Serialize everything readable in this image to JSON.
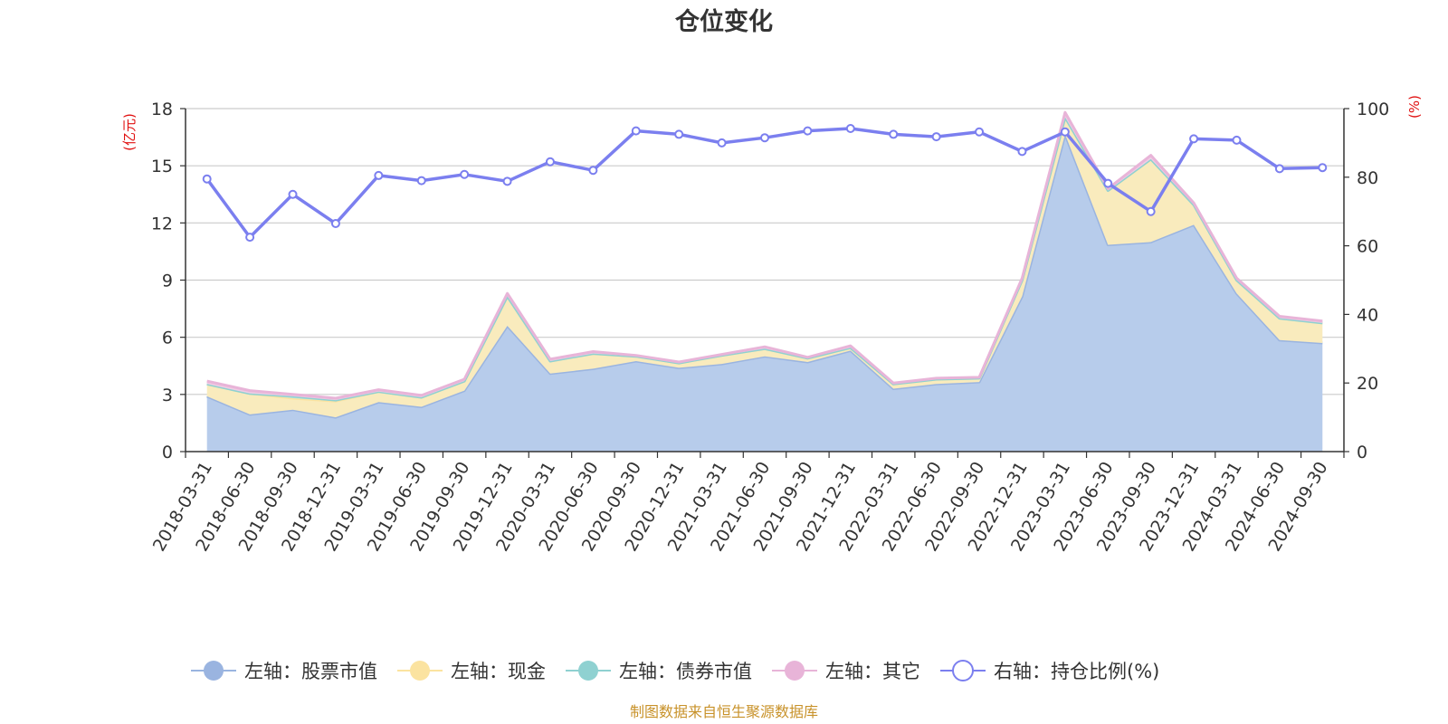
{
  "chart_data": {
    "type": "area",
    "title": "仓位变化",
    "left_axis_unit": "(亿元)",
    "right_axis_unit": "(%)",
    "source_note": "制图数据来自恒生聚源数据库",
    "categories": [
      "2018-03-31",
      "2018-06-30",
      "2018-09-30",
      "2018-12-31",
      "2019-03-31",
      "2019-06-30",
      "2019-09-30",
      "2019-12-31",
      "2020-03-31",
      "2020-06-30",
      "2020-09-30",
      "2020-12-31",
      "2021-03-31",
      "2021-06-30",
      "2021-09-30",
      "2021-12-31",
      "2022-03-31",
      "2022-06-30",
      "2022-09-30",
      "2022-12-31",
      "2023-03-31",
      "2023-06-30",
      "2023-09-30",
      "2023-12-31",
      "2024-03-31",
      "2024-06-30",
      "2024-09-30"
    ],
    "left_axis": {
      "min": 0,
      "max": 18,
      "ticks": [
        0,
        3,
        6,
        9,
        12,
        15,
        18
      ]
    },
    "right_axis": {
      "min": 0,
      "max": 100,
      "ticks": [
        0,
        20,
        40,
        60,
        80,
        100
      ]
    },
    "grid": true,
    "legend_position": "bottom",
    "series": [
      {
        "name": "左轴：股票市值",
        "axis": "left",
        "type": "stacked-area",
        "color": "#9ab4e0",
        "fill": "#b7cceb",
        "values": [
          2.9,
          1.95,
          2.2,
          1.8,
          2.6,
          2.35,
          3.2,
          6.6,
          4.1,
          4.35,
          4.75,
          4.4,
          4.6,
          5.0,
          4.7,
          5.3,
          3.3,
          3.55,
          3.65,
          8.15,
          16.65,
          10.85,
          11.0,
          11.9,
          8.3,
          5.85,
          5.7
        ]
      },
      {
        "name": "左轴：现金",
        "axis": "left",
        "type": "stacked-area",
        "color": "#fbe3a0",
        "fill": "#f9ebbd",
        "values": [
          0.65,
          1.1,
          0.6,
          0.85,
          0.55,
          0.5,
          0.5,
          1.55,
          0.65,
          0.8,
          0.25,
          0.25,
          0.45,
          0.4,
          0.2,
          0.15,
          0.25,
          0.25,
          0.2,
          0.85,
          0.9,
          2.85,
          4.35,
          1.05,
          0.7,
          1.15,
          1.05
        ]
      },
      {
        "name": "左轴：债券市值",
        "axis": "left",
        "type": "stacked-area",
        "color": "#8fd1d1",
        "fill": "#bfe6e6",
        "values": [
          0,
          0,
          0.1,
          0.05,
          0,
          0,
          0,
          0,
          0,
          0,
          0,
          0,
          0,
          0,
          0,
          0,
          0,
          0,
          0,
          0,
          0,
          0,
          0,
          0,
          0,
          0,
          0
        ]
      },
      {
        "name": "左轴：其它",
        "axis": "left",
        "type": "stacked-area",
        "color": "#e8b4d8",
        "fill": "#f0cde4",
        "values": [
          0.15,
          0.15,
          0.1,
          0.1,
          0.1,
          0.1,
          0.1,
          0.15,
          0.1,
          0.1,
          0.05,
          0.05,
          0.05,
          0.1,
          0.05,
          0.1,
          0.05,
          0.05,
          0.05,
          0.1,
          0.25,
          0.1,
          0.2,
          0.1,
          0.1,
          0.1,
          0.1
        ]
      },
      {
        "name": "右轴：持仓比例(%)",
        "axis": "right",
        "type": "line",
        "color": "#7b7fef",
        "values": [
          79.5,
          62.5,
          75.0,
          66.5,
          80.5,
          79.0,
          80.8,
          78.8,
          84.5,
          82.0,
          93.5,
          92.5,
          90.0,
          91.5,
          93.5,
          94.2,
          92.5,
          91.8,
          93.2,
          87.5,
          93.2,
          78.2,
          70.0,
          91.2,
          90.8,
          82.5,
          82.8
        ]
      }
    ]
  }
}
